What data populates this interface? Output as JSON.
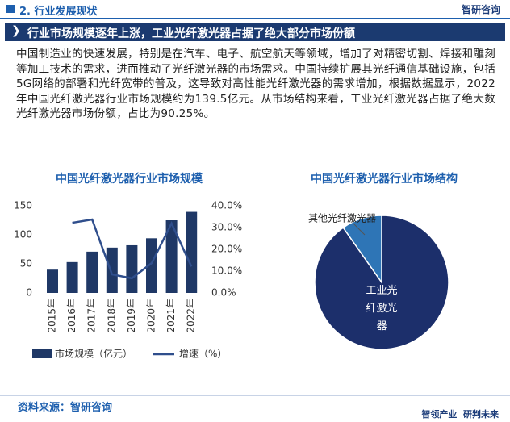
{
  "header": {
    "section": "2. 行业发展现状",
    "logo": "智研咨询"
  },
  "title": "行业市场规模逐年上涨，工业光纤激光器占据了绝大部分市场份额",
  "paragraph": "中国制造业的快速发展，特别是在汽车、电子、航空航天等领域，增加了对精密切割、焊接和雕刻等加工技术的需求，进而推动了光纤激光器的市场需求。中国持续扩展其光纤通信基础设施，包括5G网络的部署和光纤宽带的普及，这导致对高性能光纤激光器的需求增加，根据数据显示，2022年中国光纤激光器行业市场规模约为139.5亿元。从市场结构来看，工业光纤激光器占据了绝大数光纤激光器市场份额，占比为90.25%。",
  "chart_data": [
    {
      "type": "bar_line",
      "title": "中国光纤激光器行业市场规模",
      "categories": [
        "2015年",
        "2016年",
        "2017年",
        "2018年",
        "2019年",
        "2020年",
        "2021年",
        "2022年"
      ],
      "series": [
        {
          "name": "市场规模（亿元）",
          "color": "#1f3866",
          "values": [
            40,
            53,
            71,
            78,
            82,
            94,
            125,
            139.5
          ]
        },
        {
          "name": "增速（%）",
          "color": "#2f4e8c",
          "axis": "y2",
          "values": [
            null,
            32.2,
            33.7,
            8.5,
            6.7,
            13.7,
            31.9,
            12.1
          ]
        }
      ],
      "ylim": [
        0,
        150
      ],
      "yticks": [
        0,
        50,
        100,
        150
      ],
      "y2lim": [
        0,
        40
      ],
      "y2ticks": [
        {
          "value": 0,
          "label": "0.0%"
        },
        {
          "value": 10,
          "label": "10.0%"
        },
        {
          "value": 20,
          "label": "20.0%"
        },
        {
          "value": 30,
          "label": "30.0%"
        },
        {
          "value": 40,
          "label": "40.0%"
        }
      ],
      "legend": "bottom"
    },
    {
      "type": "pie",
      "title": "中国光纤激光器行业市场结构",
      "categories": [
        "工业光纤激光器",
        "其他光纤激光器"
      ],
      "values": [
        90.25,
        9.75
      ],
      "colors": [
        "#1c2f6b",
        "#2e75b6"
      ]
    }
  ],
  "source": "资料来源：智研咨询",
  "footer_slogan": "智领产业  研判未来"
}
